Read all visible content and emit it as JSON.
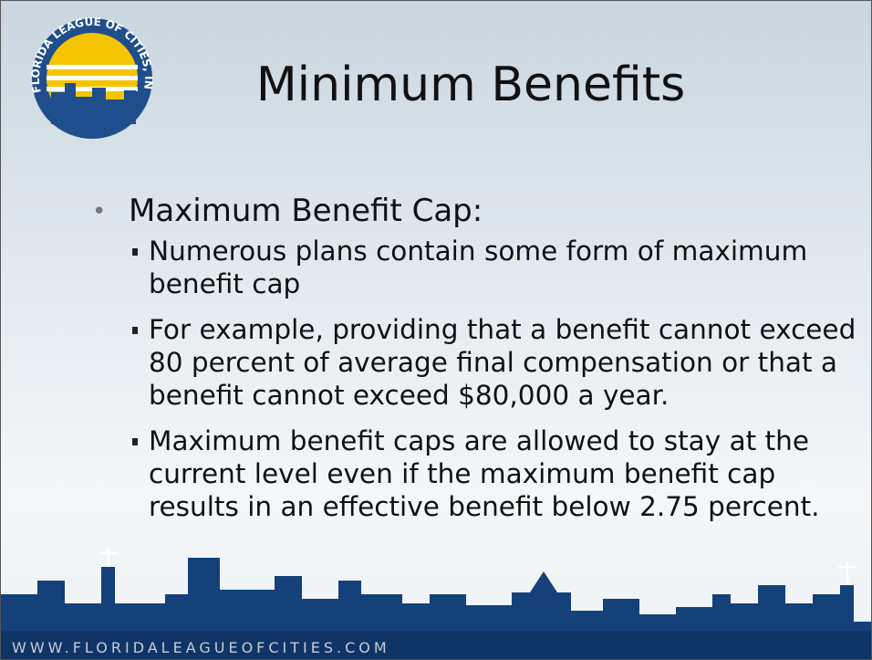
{
  "logo": {
    "text": "FLORIDA LEAGUE OF CITIES, INC."
  },
  "slide": {
    "title": "Minimum Benefits",
    "bullets": [
      {
        "text": "Maximum Benefit Cap:",
        "subitems": [
          "Numerous plans contain some form of maximum benefit cap",
          "For example, providing that a benefit cannot exceed 80 percent of average final compensation or that a benefit cannot exceed $80,000 a year.",
          "Maximum benefit caps are allowed to stay at the current level even if the maximum benefit cap results in an effective benefit below 2.75 percent."
        ]
      }
    ]
  },
  "footer": {
    "url": "WWW.FLORIDALEAGUEOFCITIES.COM"
  }
}
